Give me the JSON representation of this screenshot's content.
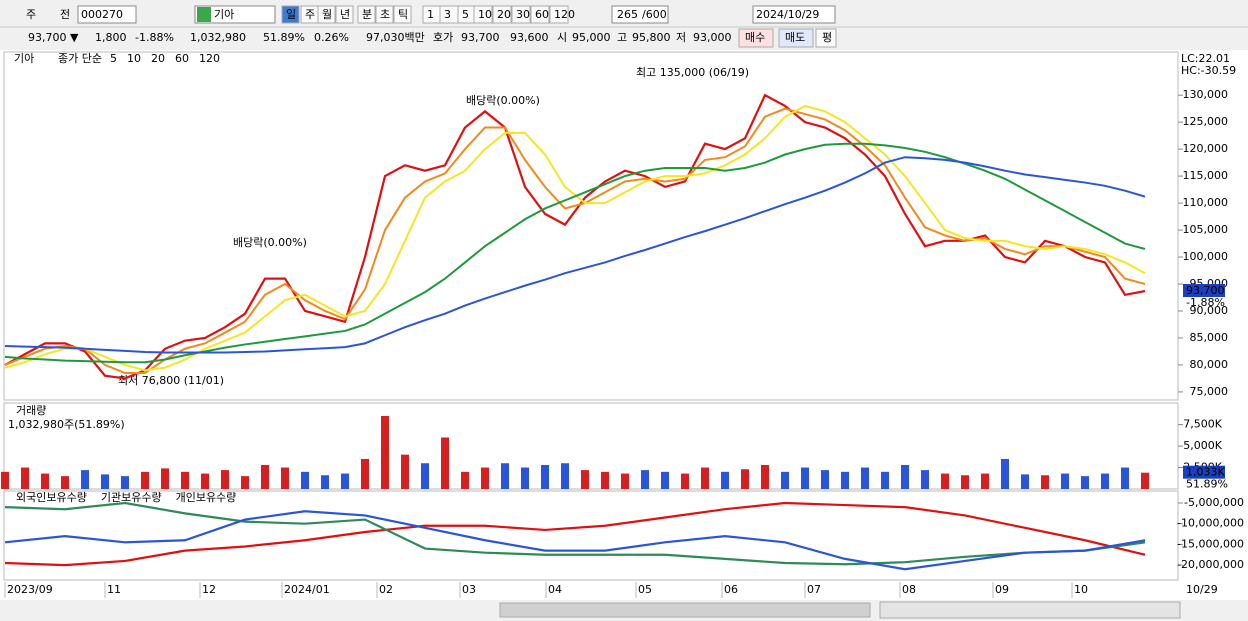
{
  "toolbar": {
    "items": [
      "주",
      "전",
      "000270",
      "기아",
      "일",
      "주",
      "월",
      "년",
      "분",
      "초",
      "틱",
      "1",
      "3",
      "5",
      "10",
      "20",
      "30",
      "60",
      "120",
      "265",
      "/600",
      "2024/10/29"
    ]
  },
  "info_bar": {
    "items": [
      "93,700 ▼",
      "1,800",
      "-1.88%",
      "1,032,980",
      "51.89%",
      "0.26%",
      "97,030백만",
      "호가",
      "93,700",
      "93,600",
      "시",
      "95,000",
      "고",
      "95,800",
      "저",
      "93,000",
      "매수",
      "매도",
      "평"
    ]
  },
  "price_chart": {
    "type": "line",
    "name": "기아",
    "legend_title": "종가 단순",
    "ylim": [
      73500,
      138000
    ],
    "yticks": [
      {
        "value": 75000,
        "label": "75,000"
      },
      {
        "value": 80000,
        "label": "80,000"
      },
      {
        "value": 85000,
        "label": "85,000"
      },
      {
        "value": 90000,
        "label": "90,000"
      },
      {
        "value": 95000,
        "label": "95,000"
      },
      {
        "value": 100000,
        "label": "100,000"
      },
      {
        "value": 105000,
        "label": "105,000"
      },
      {
        "value": 110000,
        "label": "110,000"
      },
      {
        "value": 115000,
        "label": "115,000"
      },
      {
        "value": 120000,
        "label": "120,000"
      },
      {
        "value": 125000,
        "label": "125,000"
      },
      {
        "value": 130000,
        "label": "130,000"
      }
    ],
    "series": [
      {
        "name": "5",
        "color": "#e01010",
        "values": [
          80000,
          82000,
          84000,
          84000,
          82500,
          78000,
          77500,
          79000,
          83000,
          84500,
          85000,
          87000,
          89500,
          96000,
          96000,
          90000,
          89000,
          88000,
          100000,
          115000,
          117000,
          116000,
          117000,
          124000,
          127000,
          124000,
          113000,
          108000,
          106000,
          111000,
          114000,
          116000,
          115000,
          113000,
          114000,
          121000,
          120000,
          122000,
          130000,
          128000,
          125000,
          124000,
          122000,
          119000,
          115000,
          108000,
          102000,
          103000,
          103000,
          104000,
          100000,
          99000,
          103000,
          102000,
          100000,
          99000,
          93000,
          93700
        ]
      },
      {
        "name": "10",
        "color": "#f08a1c",
        "values": [
          80000,
          81500,
          83000,
          83500,
          83000,
          80000,
          78500,
          78500,
          81000,
          83000,
          84000,
          86000,
          88000,
          93000,
          95000,
          92000,
          90000,
          88500,
          94000,
          105000,
          111000,
          114000,
          115500,
          120000,
          124000,
          124000,
          118000,
          113000,
          109000,
          110000,
          112000,
          114000,
          114500,
          114000,
          114500,
          118000,
          118500,
          120500,
          126000,
          127500,
          126500,
          125500,
          123500,
          120500,
          117000,
          111000,
          105500,
          104000,
          103000,
          103500,
          101500,
          100500,
          102000,
          102000,
          101000,
          100000,
          96000,
          95000
        ]
      },
      {
        "name": "20",
        "color": "#f5e623",
        "values": [
          79500,
          80500,
          82000,
          83000,
          83000,
          81500,
          80000,
          79000,
          79500,
          81000,
          83000,
          84500,
          86000,
          89000,
          92000,
          93000,
          91000,
          89000,
          90000,
          95000,
          103000,
          111000,
          114000,
          116000,
          120000,
          123000,
          123000,
          119000,
          113000,
          110000,
          110000,
          112000,
          114000,
          115000,
          115000,
          115500,
          117000,
          119000,
          122000,
          126000,
          128000,
          127000,
          125000,
          122000,
          119000,
          115000,
          110000,
          105000,
          103500,
          103000,
          103000,
          102000,
          101500,
          102000,
          101500,
          100500,
          99000,
          97000
        ]
      },
      {
        "name": "60",
        "color": "#1e9a3c",
        "values": [
          81500,
          81200,
          81000,
          80800,
          80700,
          80600,
          80500,
          80500,
          81000,
          81800,
          82500,
          83200,
          83800,
          84300,
          84800,
          85300,
          85800,
          86300,
          87500,
          89500,
          91500,
          93500,
          96000,
          99000,
          102000,
          104500,
          107000,
          109000,
          110500,
          112000,
          113500,
          115000,
          116000,
          116500,
          116500,
          116500,
          116000,
          116500,
          117500,
          119000,
          120000,
          120800,
          121000,
          121000,
          120700,
          120200,
          119500,
          118500,
          117300,
          116000,
          114500,
          112500,
          110500,
          108500,
          106500,
          104500,
          102500,
          101500
        ]
      },
      {
        "name": "120",
        "color": "#2b55d8",
        "values": [
          83500,
          83400,
          83300,
          83200,
          83000,
          82800,
          82600,
          82400,
          82300,
          82300,
          82300,
          82300,
          82400,
          82500,
          82700,
          82900,
          83100,
          83300,
          84000,
          85500,
          87000,
          88300,
          89500,
          91000,
          92300,
          93500,
          94700,
          95800,
          97000,
          98000,
          99000,
          100200,
          101300,
          102500,
          103700,
          104800,
          106000,
          107200,
          108500,
          109800,
          111000,
          112300,
          113800,
          115500,
          117500,
          118500,
          118300,
          118000,
          117500,
          116800,
          116000,
          115300,
          114800,
          114300,
          113800,
          113200,
          112300,
          111200
        ]
      }
    ],
    "annotations": [
      "최고 135,000 (06/19)",
      "최저 76,800 (11/01)",
      "배당락(0.00%)",
      "배당락(0.00%)"
    ],
    "corner_labels": [
      "LC:22.01",
      "HC:-30.59"
    ],
    "last_price_label": "93,700",
    "last_change_label": "-1.88%"
  },
  "volume_chart": {
    "type": "bar",
    "title": "거래량",
    "subtitle": "1,032,980주(51.89%)",
    "ylim": [
      0,
      9900000
    ],
    "yticks": [
      {
        "value": 2500000,
        "label": "2,500K"
      },
      {
        "value": 5000000,
        "label": "5,000K"
      },
      {
        "value": 7500000,
        "label": "7,500K"
      }
    ],
    "values": [
      2000000,
      2500000,
      1800000,
      1500000,
      2200000,
      1700000,
      1500000,
      2000000,
      2400000,
      2000000,
      1800000,
      2200000,
      1500000,
      2800000,
      2500000,
      2000000,
      1600000,
      1800000,
      3500000,
      8500000,
      4000000,
      3000000,
      6000000,
      2000000,
      2500000,
      3000000,
      2500000,
      2800000,
      3000000,
      2200000,
      2000000,
      1800000,
      2200000,
      2000000,
      1800000,
      2500000,
      2000000,
      2300000,
      2800000,
      2000000,
      2500000,
      2200000,
      2000000,
      2500000,
      2000000,
      2800000,
      2200000,
      1800000,
      1600000,
      1800000,
      3500000,
      1700000,
      1600000,
      1800000,
      1500000,
      1800000,
      2500000,
      1900000
    ],
    "last_label": "1,033K",
    "last_ratio_label": "51.89%"
  },
  "holdings_chart": {
    "type": "line",
    "ylim": [
      -23600000,
      -2100000
    ],
    "yticks": [
      {
        "value": -5000000,
        "label": "-5,000,000"
      },
      {
        "value": -10000000,
        "label": "-10,000,000"
      },
      {
        "value": -15000000,
        "label": "-15,000,000"
      },
      {
        "value": -20000000,
        "label": "-20,000,000"
      }
    ],
    "series": [
      {
        "name": "외국인보유수량",
        "color": "#e01010",
        "values": [
          -19500000,
          -20000000,
          -19000000,
          -16500000,
          -15500000,
          -14000000,
          -12000000,
          -10500000,
          -10500000,
          -11500000,
          -10500000,
          -8500000,
          -6500000,
          -5000000,
          -5500000,
          -6000000,
          -8000000,
          -11000000,
          -14000000,
          -17500000
        ]
      },
      {
        "name": "기관보유수량",
        "color": "#2e8b57",
        "values": [
          -6000000,
          -6500000,
          -5000000,
          -7500000,
          -9500000,
          -10000000,
          -9000000,
          -16000000,
          -17000000,
          -17500000,
          -17500000,
          -17500000,
          -18500000,
          -19500000,
          -19800000,
          -19300000,
          -18000000,
          -17000000,
          -16500000,
          -14500000
        ]
      },
      {
        "name": "개인보유수량",
        "color": "#2b55d8",
        "values": [
          -14500000,
          -13000000,
          -14500000,
          -14000000,
          -9000000,
          -7000000,
          -8000000,
          -11000000,
          -14000000,
          -16500000,
          -16500000,
          -14500000,
          -13000000,
          -14500000,
          -18500000,
          -21000000,
          -19000000,
          -17000000,
          -16500000,
          -14000000
        ]
      }
    ]
  },
  "date_axis": {
    "labels": [
      "2023/09",
      "11",
      "12",
      "2024/01",
      "02",
      "03",
      "04",
      "05",
      "06",
      "07",
      "08",
      "09",
      "10"
    ],
    "last_label": "10/29"
  }
}
